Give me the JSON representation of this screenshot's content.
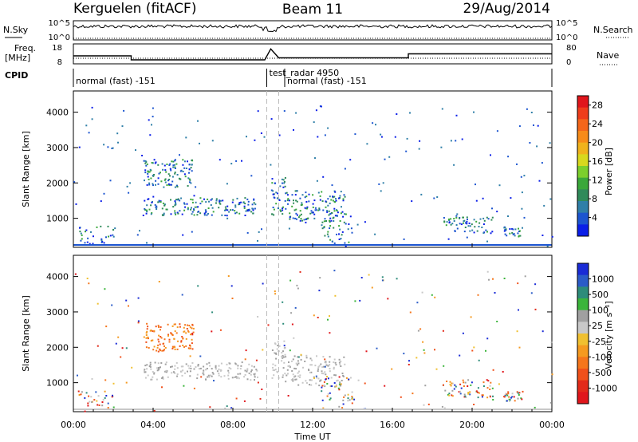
{
  "chart_data": {
    "type": "heatmap",
    "header": {
      "station": "Kerguelen (fitACF)",
      "beam": "Beam 11",
      "date": "29/Aug/2014"
    },
    "x_axis": {
      "label": "Time UT",
      "ticks": [
        "00:00",
        "04:00",
        "08:00",
        "12:00",
        "16:00",
        "20:00",
        "00:00"
      ],
      "range_hours": [
        0,
        24
      ]
    },
    "nsky_panel": {
      "left_label": "N.Sky",
      "right_label": "N.Search",
      "left_ticks": [
        "10^5",
        "10^0"
      ],
      "right_ticks": [
        "10^5",
        "10^0"
      ]
    },
    "freq_panel": {
      "left_label": "Freq.",
      "left_unit": "[MHz]",
      "right_label": "Nave",
      "left_ticks": [
        "18",
        "8"
      ],
      "right_ticks": [
        "80",
        "0"
      ],
      "freq_profile": [
        [
          0,
          12.0
        ],
        [
          2.9,
          12.0
        ],
        [
          2.9,
          10.0
        ],
        [
          9.6,
          10.0
        ],
        [
          9.9,
          15.5
        ],
        [
          10.3,
          11.0
        ],
        [
          16.8,
          11.0
        ],
        [
          16.8,
          13.0
        ],
        [
          24,
          13.0
        ]
      ]
    },
    "cpid_panel": {
      "label": "CPID",
      "programs": [
        {
          "name": "normal (fast) -151",
          "start": 0.0,
          "end": 9.7
        },
        {
          "name": "test_radar 4950",
          "start": 9.7,
          "end": 10.6
        },
        {
          "name": "normal (fast) -151",
          "start": 10.6,
          "end": 24.0
        }
      ]
    },
    "power_panel": {
      "ylabel": "Slant Range [km]",
      "yticks": [
        1000,
        2000,
        3000,
        4000
      ],
      "ylim": [
        180,
        4600
      ],
      "colorbar": {
        "label": "Power [dB]",
        "ticks": [
          4,
          8,
          12,
          16,
          20,
          24,
          28
        ],
        "range": [
          0,
          30
        ],
        "colors": [
          "#0a1ee8",
          "#1c55d0",
          "#2f7fa8",
          "#2f8a5a",
          "#3aa83a",
          "#7ccf2c",
          "#d8d81e",
          "#f0b21c",
          "#f78b19",
          "#f4661a",
          "#ee3d1b",
          "#e0161c"
        ]
      }
    },
    "velocity_panel": {
      "ylabel": "Slant Range [km]",
      "yticks": [
        1000,
        2000,
        3000,
        4000
      ],
      "ylim": [
        180,
        4600
      ],
      "colorbar": {
        "label": "Velocity [m s⁻¹]",
        "ticks": [
          "1000",
          "500",
          "100",
          "25",
          "-25",
          "-100",
          "-500",
          "-1000"
        ],
        "colors": [
          "#1a2bd6",
          "#2b5cc8",
          "#2d8c7a",
          "#3bb53b",
          "#a0a0a0",
          "#c8c8c8",
          "#f0c030",
          "#f59a20",
          "#f5761c",
          "#f0501a",
          "#e22a1a",
          "#e0161c"
        ]
      }
    }
  }
}
